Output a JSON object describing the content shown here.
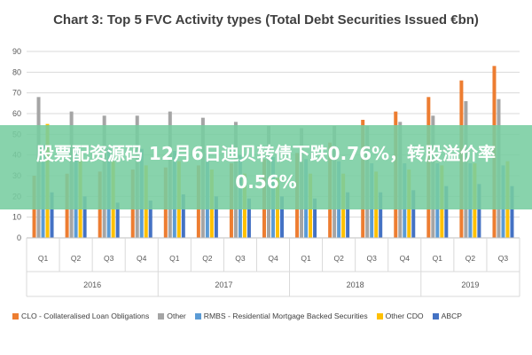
{
  "overlay_text": "股票配资源码 12月6日迪贝转债下跌0.76%，转股溢价率0.56%",
  "chart_data": {
    "type": "bar",
    "title": "Chart 3: Top 5 FVC Activity types (Total Debt Securities Issued €bn)",
    "ylim": [
      0,
      90
    ],
    "yticks": [
      0,
      10,
      20,
      30,
      40,
      50,
      60,
      70,
      80,
      90
    ],
    "grid": true,
    "legend_position": "bottom",
    "categories": [
      "Q1",
      "Q2",
      "Q3",
      "Q4",
      "Q1",
      "Q2",
      "Q3",
      "Q4",
      "Q1",
      "Q2",
      "Q3",
      "Q4",
      "Q1",
      "Q2",
      "Q3"
    ],
    "year_groups": [
      {
        "label": "2016",
        "count": 4
      },
      {
        "label": "2017",
        "count": 4
      },
      {
        "label": "2018",
        "count": 4
      },
      {
        "label": "2019",
        "count": 3
      }
    ],
    "series": [
      {
        "name": "CLO - Collateralised Loan Obligations",
        "color": "#ED7D31",
        "values": [
          30,
          31,
          32,
          33,
          34,
          35,
          36,
          38,
          41,
          46,
          57,
          61,
          68,
          76,
          83
        ]
      },
      {
        "name": "Other",
        "color": "#A5A5A5",
        "values": [
          68,
          61,
          59,
          59,
          61,
          58,
          56,
          54,
          53,
          54,
          54,
          56,
          59,
          66,
          67
        ]
      },
      {
        "name": "RMBS - Residential Mortgage Backed Securities",
        "color": "#5B9BD5",
        "values": [
          45,
          44,
          43,
          43,
          42,
          41,
          40,
          39,
          38,
          37,
          36,
          36,
          36,
          36,
          35
        ]
      },
      {
        "name": "Other CDO",
        "color": "#FFC000",
        "values": [
          55,
          41,
          37,
          35,
          37,
          33,
          31,
          29,
          31,
          31,
          32,
          33,
          35,
          36,
          37
        ]
      },
      {
        "name": "ABCP",
        "color": "#4472C4",
        "values": [
          22,
          20,
          17,
          18,
          21,
          20,
          19,
          20,
          19,
          22,
          22,
          23,
          25,
          26,
          25
        ]
      }
    ]
  }
}
